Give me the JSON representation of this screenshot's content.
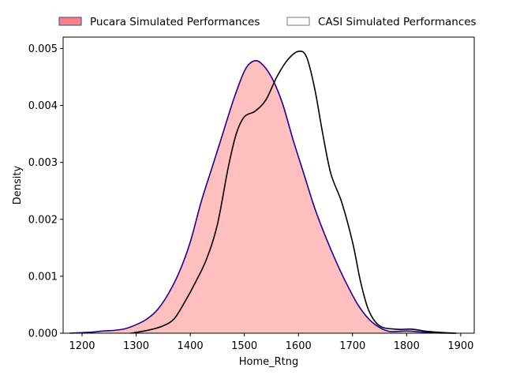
{
  "chart_data": {
    "type": "area",
    "xlabel": "Home_Rtng",
    "ylabel": "Density",
    "xlim": [
      1165,
      1925
    ],
    "ylim": [
      0,
      0.0052
    ],
    "x_ticks": [
      1200,
      1300,
      1400,
      1500,
      1600,
      1700,
      1800,
      1900
    ],
    "y_ticks": [
      0.0,
      0.001,
      0.002,
      0.003,
      0.004,
      0.005
    ],
    "x_tick_labels": [
      "1200",
      "1300",
      "1400",
      "1500",
      "1600",
      "1700",
      "1800",
      "1900"
    ],
    "y_tick_labels": [
      "0.000",
      "0.001",
      "0.002",
      "0.003",
      "0.004",
      "0.005"
    ],
    "grid": false,
    "legend_position": "top",
    "series": [
      {
        "name": "Pucara Simulated Performances",
        "style": "filled",
        "fill_color": "#ff8080",
        "fill_opacity": 0.5,
        "line_color": "#1a0099",
        "points": [
          [
            1177,
            0.0
          ],
          [
            1200,
            1e-05
          ],
          [
            1220,
            2e-05
          ],
          [
            1240,
            4e-05
          ],
          [
            1260,
            5e-05
          ],
          [
            1280,
            8e-05
          ],
          [
            1300,
            0.00015
          ],
          [
            1320,
            0.00025
          ],
          [
            1340,
            0.00042
          ],
          [
            1360,
            0.0007
          ],
          [
            1380,
            0.00108
          ],
          [
            1400,
            0.0016
          ],
          [
            1420,
            0.0023
          ],
          [
            1440,
            0.0029
          ],
          [
            1460,
            0.0035
          ],
          [
            1480,
            0.0041
          ],
          [
            1500,
            0.0046
          ],
          [
            1515,
            0.00477
          ],
          [
            1530,
            0.00475
          ],
          [
            1550,
            0.0045
          ],
          [
            1570,
            0.00405
          ],
          [
            1590,
            0.0034
          ],
          [
            1610,
            0.0028
          ],
          [
            1630,
            0.0022
          ],
          [
            1650,
            0.0017
          ],
          [
            1670,
            0.00125
          ],
          [
            1690,
            0.00085
          ],
          [
            1710,
            0.0005
          ],
          [
            1730,
            0.00025
          ],
          [
            1750,
            0.0001
          ],
          [
            1770,
            3e-05
          ],
          [
            1800,
            4e-05
          ],
          [
            1830,
            2e-05
          ],
          [
            1860,
            5e-06
          ],
          [
            1890,
            0.0
          ]
        ]
      },
      {
        "name": "CASI Simulated Performances",
        "style": "line",
        "fill_color": "#ffffff",
        "line_color": "#000000",
        "points": [
          [
            1290,
            0.0
          ],
          [
            1310,
            3e-05
          ],
          [
            1330,
            7e-05
          ],
          [
            1350,
            0.00013
          ],
          [
            1370,
            0.00025
          ],
          [
            1390,
            0.00055
          ],
          [
            1410,
            0.0009
          ],
          [
            1430,
            0.0013
          ],
          [
            1450,
            0.0019
          ],
          [
            1470,
            0.0029
          ],
          [
            1485,
            0.0035
          ],
          [
            1500,
            0.0038
          ],
          [
            1520,
            0.0039
          ],
          [
            1540,
            0.0041
          ],
          [
            1560,
            0.0045
          ],
          [
            1580,
            0.0048
          ],
          [
            1600,
            0.00495
          ],
          [
            1615,
            0.00485
          ],
          [
            1630,
            0.0043
          ],
          [
            1645,
            0.0035
          ],
          [
            1660,
            0.0028
          ],
          [
            1680,
            0.0023
          ],
          [
            1700,
            0.0016
          ],
          [
            1715,
            0.0009
          ],
          [
            1730,
            0.0004
          ],
          [
            1750,
            0.00013
          ],
          [
            1780,
            7e-05
          ],
          [
            1810,
            7e-05
          ],
          [
            1840,
            3e-05
          ],
          [
            1870,
            1e-05
          ],
          [
            1892,
            0.0
          ]
        ]
      }
    ]
  }
}
